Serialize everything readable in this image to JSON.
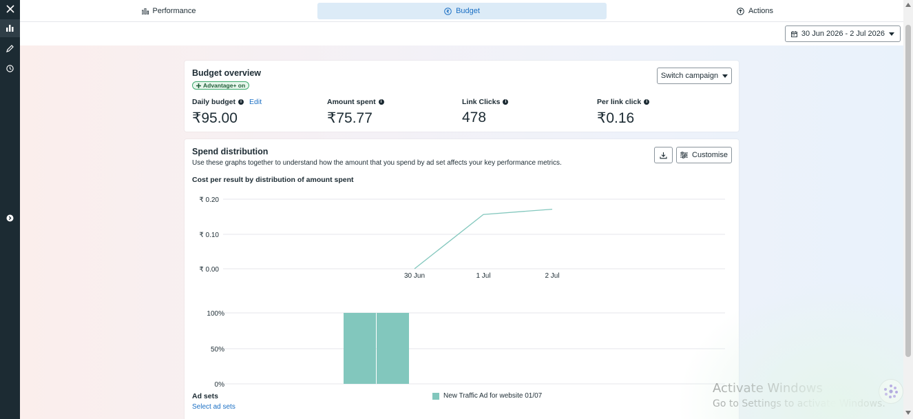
{
  "rail": {
    "items": [
      {
        "name": "close-icon"
      },
      {
        "name": "bar-chart-icon",
        "active": true
      },
      {
        "name": "pencil-icon"
      },
      {
        "name": "clock-icon"
      },
      {
        "name": "chevron-right-icon"
      }
    ]
  },
  "nav": {
    "tabs": [
      {
        "label": "Performance",
        "icon": "bar-chart-icon"
      },
      {
        "label": "Budget",
        "icon": "rupee-circle-icon",
        "active": true
      },
      {
        "label": "Actions",
        "icon": "arrow-up-circle-icon"
      }
    ]
  },
  "date_range": "30 Jun 2026 - 2 Jul 2026",
  "overview": {
    "title": "Budget overview",
    "badge": "Advantage+ on",
    "switch_label": "Switch campaign",
    "edit_label": "Edit",
    "metrics": [
      {
        "label": "Daily budget",
        "value": "₹95.00"
      },
      {
        "label": "Amount spent",
        "value": "₹75.77"
      },
      {
        "label": "Link Clicks",
        "value": "478"
      },
      {
        "label": "Per link click",
        "value": "₹0.16"
      }
    ]
  },
  "spend": {
    "title": "Spend distribution",
    "description": "Use these graphs together to understand how the amount that you spend by ad set affects your key performance metrics.",
    "chart_title": "Cost per result by distribution of amount spent",
    "customise_label": "Customise",
    "ad_sets_label": "Ad sets",
    "select_label": "Select ad sets",
    "legend_item": "New Traffic Ad for website 01/07",
    "series_color": "#82c7bd"
  },
  "chart_data": [
    {
      "type": "line",
      "title": "Cost per result by distribution of amount spent",
      "x": [
        "30 Jun",
        "1 Jul",
        "2 Jul"
      ],
      "y_ticks": [
        "₹ 0.00",
        "₹ 0.10",
        "₹ 0.20"
      ],
      "ylim": [
        0,
        0.2
      ],
      "series": [
        {
          "values": [
            0.0,
            0.156,
            0.171
          ]
        }
      ],
      "grid": true
    },
    {
      "type": "bar",
      "y_ticks": [
        "0%",
        "50%",
        "100%"
      ],
      "ylim": [
        0,
        100
      ],
      "series": [
        {
          "name": "New Traffic Ad for website 01/07",
          "values": [
            100,
            100
          ]
        }
      ],
      "legend": "bottom"
    }
  ],
  "watermark": {
    "line1": "Activate Windows",
    "line2": "Go to Settings to activate Windows."
  }
}
